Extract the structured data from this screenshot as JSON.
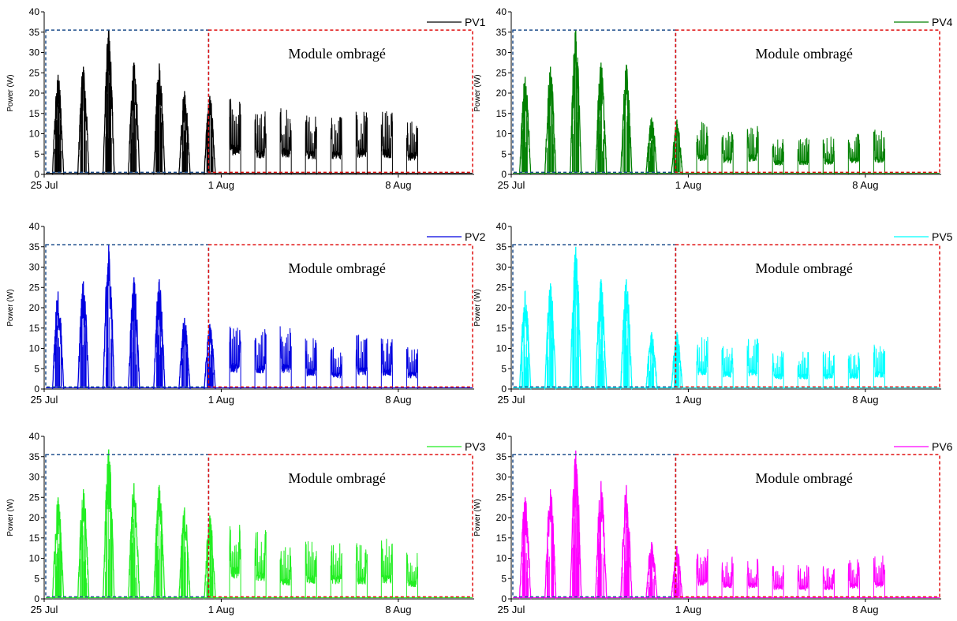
{
  "x_ticks": [
    "25 Jul",
    "1 Aug",
    "8 Aug"
  ],
  "y_label": "Power (W)",
  "annotation": "Module ombragé",
  "chart_data": [
    {
      "type": "line",
      "series_name": "PV1",
      "color": "#000000",
      "xlim": [
        0,
        17
      ],
      "ylim": [
        0,
        40
      ],
      "y_ticks": [
        0,
        5,
        10,
        15,
        20,
        25,
        30,
        35,
        40
      ],
      "daily_peak_W": [
        24.5,
        26.5,
        35.5,
        27.5,
        27.3,
        20.5,
        19.3,
        19.0,
        16.0,
        16.5,
        14.5,
        14.8,
        16.2,
        15.8,
        13.5
      ],
      "shaded_from_day": 6.5
    },
    {
      "type": "line",
      "series_name": "PV2",
      "color": "#0000e0",
      "xlim": [
        0,
        17
      ],
      "ylim": [
        0,
        40
      ],
      "y_ticks": [
        0,
        5,
        10,
        15,
        20,
        25,
        30,
        35,
        40
      ],
      "daily_peak_W": [
        24.0,
        26.5,
        35.5,
        27.5,
        27.0,
        17.5,
        16.0,
        16.0,
        15.0,
        15.5,
        12.5,
        10.5,
        13.5,
        12.5,
        10.5
      ],
      "shaded_from_day": 6.5
    },
    {
      "type": "line",
      "series_name": "PV3",
      "color": "#22ee22",
      "xlim": [
        0,
        17
      ],
      "ylim": [
        0,
        40
      ],
      "y_ticks": [
        0,
        5,
        10,
        15,
        20,
        25,
        30,
        35,
        40
      ],
      "daily_peak_W": [
        25.0,
        27.0,
        36.8,
        28.5,
        28.0,
        22.5,
        20.5,
        20.0,
        17.0,
        13.0,
        14.5,
        14.5,
        14.0,
        15.0,
        11.5
      ],
      "shaded_from_day": 6.5
    },
    {
      "type": "line",
      "series_name": "PV4",
      "color": "#008000",
      "xlim": [
        0,
        17
      ],
      "ylim": [
        0,
        40
      ],
      "y_ticks": [
        0,
        5,
        10,
        15,
        20,
        25,
        30,
        35,
        40
      ],
      "daily_peak_W": [
        24.0,
        26.5,
        35.5,
        27.5,
        27.0,
        14.0,
        13.5,
        13.0,
        11.0,
        12.5,
        9.0,
        9.0,
        9.5,
        10.5,
        11.0
      ],
      "shaded_from_day": 6.5
    },
    {
      "type": "line",
      "series_name": "PV5",
      "color": "#00ffff",
      "xlim": [
        0,
        17
      ],
      "ylim": [
        0,
        40
      ],
      "y_ticks": [
        0,
        5,
        10,
        15,
        20,
        25,
        30,
        35,
        40
      ],
      "daily_peak_W": [
        24.0,
        26.0,
        35.0,
        27.0,
        27.0,
        14.0,
        14.0,
        13.5,
        11.0,
        12.5,
        9.5,
        9.5,
        9.5,
        9.8,
        11.0
      ],
      "shaded_from_day": 6.5
    },
    {
      "type": "line",
      "series_name": "PV6",
      "color": "#ff00ff",
      "xlim": [
        0,
        17
      ],
      "ylim": [
        0,
        40
      ],
      "y_ticks": [
        0,
        5,
        10,
        15,
        20,
        25,
        30,
        35,
        40
      ],
      "daily_peak_W": [
        25.0,
        27.0,
        36.5,
        29.0,
        28.0,
        14.0,
        13.0,
        12.5,
        10.5,
        10.0,
        9.0,
        8.5,
        8.5,
        10.0,
        11.0
      ],
      "shaded_from_day": 6.5
    }
  ]
}
